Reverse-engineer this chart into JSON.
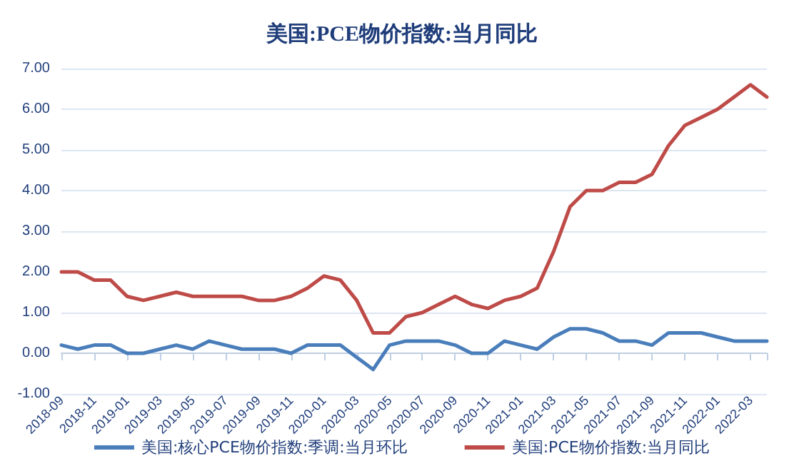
{
  "chart_data": {
    "type": "line",
    "title": "美国:PCE物价指数:当月同比",
    "categories": [
      "2018-09",
      null,
      "2018-11",
      null,
      "2019-01",
      null,
      "2019-03",
      null,
      "2019-05",
      null,
      "2019-07",
      null,
      "2019-09",
      null,
      "2019-11",
      null,
      "2020-01",
      null,
      "2020-03",
      null,
      "2020-05",
      null,
      "2020-07",
      null,
      "2020-09",
      null,
      "2020-11",
      null,
      "2021-01",
      null,
      "2021-03",
      null,
      "2021-05",
      null,
      "2021-07",
      null,
      "2021-09",
      null,
      "2021-11",
      null,
      "2022-01",
      null,
      "2022-03",
      null
    ],
    "series": [
      {
        "name": "美国:核心PCE物价指数:季调:当月环比",
        "color": "#4a7ebb",
        "values": [
          0.2,
          0.1,
          0.2,
          0.2,
          0.0,
          0.0,
          0.1,
          0.2,
          0.1,
          0.3,
          0.2,
          0.1,
          0.1,
          0.1,
          0.0,
          0.2,
          0.2,
          0.2,
          -0.1,
          -0.4,
          0.2,
          0.3,
          0.3,
          0.3,
          0.2,
          0.0,
          0.0,
          0.3,
          0.2,
          0.1,
          0.4,
          0.6,
          0.6,
          0.5,
          0.3,
          0.3,
          0.2,
          0.5,
          0.5,
          0.5,
          0.4,
          0.3,
          0.3,
          0.3
        ]
      },
      {
        "name": "美国:PCE物价指数:当月同比",
        "color": "#be4b48",
        "values": [
          2.0,
          2.0,
          1.8,
          1.8,
          1.4,
          1.3,
          1.4,
          1.5,
          1.4,
          1.4,
          1.4,
          1.4,
          1.3,
          1.3,
          1.4,
          1.6,
          1.9,
          1.8,
          1.3,
          0.5,
          0.5,
          0.9,
          1.0,
          1.2,
          1.4,
          1.2,
          1.1,
          1.3,
          1.4,
          1.6,
          2.5,
          3.6,
          4.0,
          4.0,
          4.2,
          4.2,
          4.4,
          5.1,
          5.6,
          5.8,
          6.0,
          6.3,
          6.6,
          6.3
        ]
      }
    ],
    "ylim": [
      -1,
      7
    ],
    "yticks": [
      {
        "value": -1,
        "label": "-1.00"
      },
      {
        "value": 0,
        "label": "0.00"
      },
      {
        "value": 1,
        "label": "1.00"
      },
      {
        "value": 2,
        "label": "2.00"
      },
      {
        "value": 3,
        "label": "3.00"
      },
      {
        "value": 4,
        "label": "4.00"
      },
      {
        "value": 5,
        "label": "5.00"
      },
      {
        "value": 6,
        "label": "6.00"
      },
      {
        "value": 7,
        "label": "7.00"
      }
    ],
    "grid": "y",
    "legend": "bottom",
    "marker": "none",
    "line_style": "solid"
  }
}
